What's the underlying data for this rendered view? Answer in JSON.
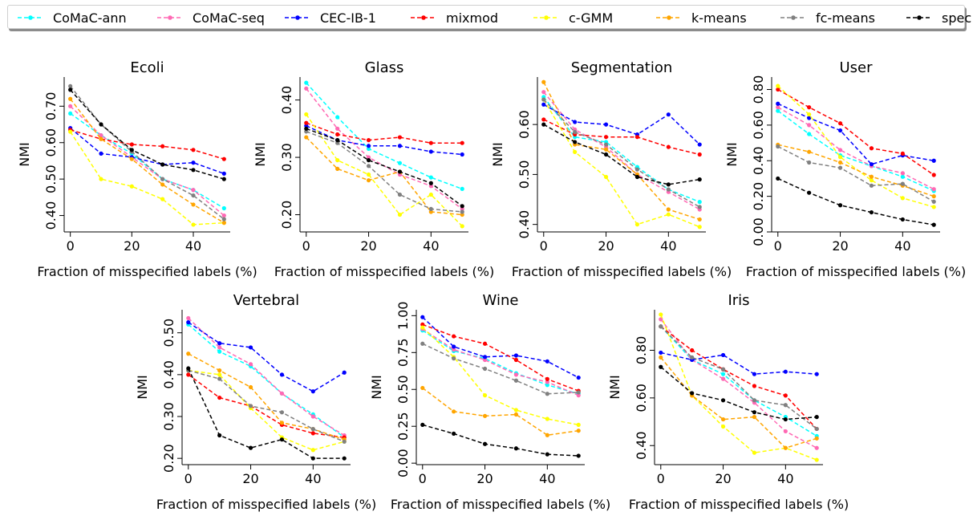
{
  "chart_data": [
    {
      "title": "Ecoli",
      "type": "line",
      "xlabel": "Fraction of misspecified labels (%)",
      "ylabel": "NMI",
      "x": [
        0,
        10,
        20,
        30,
        40,
        50
      ],
      "xlim": [
        -2,
        52
      ],
      "ylim": [
        0.355,
        0.78
      ],
      "xticks": [
        0,
        20,
        40
      ],
      "xtick_labels": [
        "0",
        "20",
        "40"
      ],
      "yticks": [
        0.4,
        0.5,
        0.6,
        0.7
      ],
      "ytick_labels": [
        "0.40",
        "0.50",
        "0.60",
        "0.70"
      ],
      "series": [
        {
          "name": "CoMaC-ann",
          "values": [
            0.68,
            0.62,
            0.57,
            0.5,
            0.47,
            0.42
          ]
        },
        {
          "name": "CoMaC-seq",
          "values": [
            0.7,
            0.62,
            0.56,
            0.5,
            0.47,
            0.4
          ]
        },
        {
          "name": "CEC-IB-1",
          "values": [
            0.64,
            0.57,
            0.56,
            0.54,
            0.545,
            0.515
          ]
        },
        {
          "name": "mixmod",
          "values": [
            0.635,
            0.61,
            0.595,
            0.59,
            0.58,
            0.555
          ]
        },
        {
          "name": "c-GMM",
          "values": [
            0.63,
            0.5,
            0.48,
            0.445,
            0.375,
            0.38
          ]
        },
        {
          "name": "k-means",
          "values": [
            0.72,
            0.61,
            0.555,
            0.485,
            0.43,
            0.38
          ]
        },
        {
          "name": "fc-means",
          "values": [
            0.755,
            0.65,
            0.575,
            0.5,
            0.455,
            0.39
          ]
        },
        {
          "name": "spec",
          "values": [
            0.745,
            0.65,
            0.58,
            0.54,
            0.525,
            0.5
          ]
        }
      ]
    },
    {
      "title": "Glass",
      "type": "line",
      "xlabel": "Fraction of misspecified labels (%)",
      "ylabel": "NMI",
      "x": [
        0,
        10,
        20,
        30,
        40,
        50
      ],
      "xlim": [
        -2,
        52
      ],
      "ylim": [
        0.17,
        0.44
      ],
      "xticks": [
        0,
        20,
        40
      ],
      "xtick_labels": [
        "0",
        "20",
        "40"
      ],
      "yticks": [
        0.2,
        0.3,
        0.4
      ],
      "ytick_labels": [
        "0.20",
        "0.30",
        "0.40"
      ],
      "series": [
        {
          "name": "CoMaC-ann",
          "values": [
            0.43,
            0.37,
            0.315,
            0.29,
            0.265,
            0.245
          ]
        },
        {
          "name": "CoMaC-seq",
          "values": [
            0.42,
            0.35,
            0.3,
            0.27,
            0.25,
            0.21
          ]
        },
        {
          "name": "CEC-IB-1",
          "values": [
            0.355,
            0.33,
            0.32,
            0.32,
            0.31,
            0.305
          ]
        },
        {
          "name": "mixmod",
          "values": [
            0.36,
            0.34,
            0.33,
            0.335,
            0.325,
            0.325
          ]
        },
        {
          "name": "c-GMM",
          "values": [
            0.375,
            0.295,
            0.27,
            0.2,
            0.235,
            0.18
          ]
        },
        {
          "name": "k-means",
          "values": [
            0.335,
            0.28,
            0.26,
            0.275,
            0.205,
            0.2
          ]
        },
        {
          "name": "fc-means",
          "values": [
            0.345,
            0.325,
            0.285,
            0.235,
            0.21,
            0.205
          ]
        },
        {
          "name": "spec",
          "values": [
            0.35,
            0.33,
            0.295,
            0.275,
            0.255,
            0.215
          ]
        }
      ]
    },
    {
      "title": "Segmentation",
      "type": "line",
      "xlabel": "Fraction of misspecified labels (%)",
      "ylabel": "NMI",
      "x": [
        0,
        10,
        20,
        30,
        40,
        50
      ],
      "xlim": [
        -2,
        52
      ],
      "ylim": [
        0.385,
        0.695
      ],
      "xticks": [
        0,
        20,
        40
      ],
      "xtick_labels": [
        "0",
        "20",
        "40"
      ],
      "yticks": [
        0.4,
        0.5,
        0.6
      ],
      "ytick_labels": [
        "0.40",
        "0.50",
        "0.60"
      ],
      "series": [
        {
          "name": "CoMaC-ann",
          "values": [
            0.655,
            0.575,
            0.565,
            0.515,
            0.47,
            0.445
          ]
        },
        {
          "name": "CoMaC-seq",
          "values": [
            0.665,
            0.59,
            0.555,
            0.5,
            0.465,
            0.43
          ]
        },
        {
          "name": "CEC-IB-1",
          "values": [
            0.64,
            0.605,
            0.6,
            0.58,
            0.62,
            0.56
          ]
        },
        {
          "name": "mixmod",
          "values": [
            0.61,
            0.58,
            0.575,
            0.575,
            0.555,
            0.54
          ]
        },
        {
          "name": "c-GMM",
          "values": [
            0.65,
            0.545,
            0.495,
            0.4,
            0.42,
            0.395
          ]
        },
        {
          "name": "k-means",
          "values": [
            0.685,
            0.56,
            0.55,
            0.5,
            0.43,
            0.41
          ]
        },
        {
          "name": "fc-means",
          "values": [
            0.65,
            0.585,
            0.56,
            0.51,
            0.47,
            0.435
          ]
        },
        {
          "name": "spec",
          "values": [
            0.6,
            0.565,
            0.54,
            0.495,
            0.48,
            0.49
          ]
        }
      ]
    },
    {
      "title": "User",
      "type": "line",
      "xlabel": "Fraction of misspecified labels (%)",
      "ylabel": "NMI",
      "x": [
        0,
        10,
        20,
        30,
        40,
        50
      ],
      "xlim": [
        -2,
        52
      ],
      "ylim": [
        0.0,
        0.87
      ],
      "xticks": [
        0,
        20,
        40
      ],
      "xtick_labels": [
        "0",
        "20",
        "40"
      ],
      "yticks": [
        0.0,
        0.2,
        0.4,
        0.6,
        0.8
      ],
      "ytick_labels": [
        "0.00",
        "0.20",
        "0.40",
        "0.60",
        "0.80"
      ],
      "series": [
        {
          "name": "CoMaC-ann",
          "values": [
            0.68,
            0.55,
            0.43,
            0.37,
            0.31,
            0.23
          ]
        },
        {
          "name": "CoMaC-seq",
          "values": [
            0.7,
            0.6,
            0.46,
            0.37,
            0.33,
            0.24
          ]
        },
        {
          "name": "CEC-IB-1",
          "values": [
            0.72,
            0.64,
            0.57,
            0.38,
            0.43,
            0.4
          ]
        },
        {
          "name": "mixmod",
          "values": [
            0.8,
            0.7,
            0.61,
            0.47,
            0.44,
            0.32
          ]
        },
        {
          "name": "c-GMM",
          "values": [
            0.82,
            0.66,
            0.42,
            0.29,
            0.19,
            0.14
          ]
        },
        {
          "name": "k-means",
          "values": [
            0.49,
            0.45,
            0.39,
            0.31,
            0.26,
            0.2
          ]
        },
        {
          "name": "fc-means",
          "values": [
            0.48,
            0.39,
            0.36,
            0.26,
            0.27,
            0.17
          ]
        },
        {
          "name": "spec",
          "values": [
            0.3,
            0.22,
            0.15,
            0.11,
            0.07,
            0.04
          ]
        }
      ]
    },
    {
      "title": "Vertebral",
      "type": "line",
      "xlabel": "Fraction of misspecified labels (%)",
      "ylabel": "NMI",
      "x": [
        0,
        10,
        20,
        30,
        40,
        50
      ],
      "xlim": [
        -2,
        52
      ],
      "ylim": [
        0.185,
        0.555
      ],
      "xticks": [
        0,
        20,
        40
      ],
      "xtick_labels": [
        "0",
        "20",
        "40"
      ],
      "yticks": [
        0.2,
        0.3,
        0.4,
        0.5
      ],
      "ytick_labels": [
        "0.20",
        "0.30",
        "0.40",
        "0.50"
      ],
      "series": [
        {
          "name": "CoMaC-ann",
          "values": [
            0.52,
            0.455,
            0.42,
            0.355,
            0.305,
            0.25
          ]
        },
        {
          "name": "CoMaC-seq",
          "values": [
            0.535,
            0.465,
            0.425,
            0.355,
            0.3,
            0.255
          ]
        },
        {
          "name": "CEC-IB-1",
          "values": [
            0.525,
            0.475,
            0.465,
            0.4,
            0.36,
            0.405
          ]
        },
        {
          "name": "mixmod",
          "values": [
            0.4,
            0.345,
            0.325,
            0.28,
            0.26,
            0.25
          ]
        },
        {
          "name": "c-GMM",
          "values": [
            0.41,
            0.4,
            0.32,
            0.25,
            0.22,
            0.24
          ]
        },
        {
          "name": "k-means",
          "values": [
            0.45,
            0.41,
            0.37,
            0.285,
            0.27,
            0.245
          ]
        },
        {
          "name": "fc-means",
          "values": [
            0.41,
            0.39,
            0.325,
            0.31,
            0.27,
            0.24
          ]
        },
        {
          "name": "spec",
          "values": [
            0.415,
            0.255,
            0.225,
            0.245,
            0.2,
            0.2
          ]
        }
      ]
    },
    {
      "title": "Wine",
      "type": "line",
      "xlabel": "Fraction of misspecified labels (%)",
      "ylabel": "NMI",
      "x": [
        0,
        10,
        20,
        30,
        40,
        50
      ],
      "xlim": [
        -2,
        52
      ],
      "ylim": [
        -0.01,
        1.04
      ],
      "xticks": [
        0,
        20,
        40
      ],
      "xtick_labels": [
        "0",
        "20",
        "40"
      ],
      "yticks": [
        0.0,
        0.25,
        0.5,
        0.75,
        1.0
      ],
      "ytick_labels": [
        "0.00",
        "0.25",
        "0.50",
        "0.75",
        "1.00"
      ],
      "series": [
        {
          "name": "CoMaC-ann",
          "values": [
            0.9,
            0.76,
            0.71,
            0.61,
            0.53,
            0.47
          ]
        },
        {
          "name": "CoMaC-seq",
          "values": [
            0.91,
            0.77,
            0.7,
            0.6,
            0.55,
            0.46
          ]
        },
        {
          "name": "CEC-IB-1",
          "values": [
            0.99,
            0.79,
            0.72,
            0.73,
            0.69,
            0.58
          ]
        },
        {
          "name": "mixmod",
          "values": [
            0.94,
            0.86,
            0.81,
            0.7,
            0.57,
            0.49
          ]
        },
        {
          "name": "c-GMM",
          "values": [
            0.92,
            0.72,
            0.46,
            0.36,
            0.3,
            0.26
          ]
        },
        {
          "name": "k-means",
          "values": [
            0.51,
            0.35,
            0.32,
            0.33,
            0.19,
            0.22
          ]
        },
        {
          "name": "fc-means",
          "values": [
            0.81,
            0.71,
            0.64,
            0.56,
            0.47,
            0.48
          ]
        },
        {
          "name": "spec",
          "values": [
            0.26,
            0.2,
            0.13,
            0.1,
            0.06,
            0.05
          ]
        }
      ]
    },
    {
      "title": "Iris",
      "type": "line",
      "xlabel": "Fraction of misspecified labels (%)",
      "ylabel": "NMI",
      "x": [
        0,
        10,
        20,
        30,
        40,
        50
      ],
      "xlim": [
        -2,
        52
      ],
      "ylim": [
        0.32,
        0.97
      ],
      "xticks": [
        0,
        20,
        40
      ],
      "xtick_labels": [
        "0",
        "20",
        "40"
      ],
      "yticks": [
        0.4,
        0.6,
        0.8
      ],
      "ytick_labels": [
        "0.40",
        "0.60",
        "0.80"
      ],
      "series": [
        {
          "name": "CoMaC-ann",
          "values": [
            0.9,
            0.76,
            0.7,
            0.59,
            0.52,
            0.44
          ]
        },
        {
          "name": "CoMaC-seq",
          "values": [
            0.93,
            0.76,
            0.68,
            0.58,
            0.46,
            0.39
          ]
        },
        {
          "name": "CEC-IB-1",
          "values": [
            0.79,
            0.76,
            0.78,
            0.7,
            0.71,
            0.7
          ]
        },
        {
          "name": "mixmod",
          "values": [
            0.9,
            0.8,
            0.72,
            0.65,
            0.61,
            0.47
          ]
        },
        {
          "name": "c-GMM",
          "values": [
            0.95,
            0.61,
            0.48,
            0.37,
            0.39,
            0.34
          ]
        },
        {
          "name": "k-means",
          "values": [
            0.77,
            0.61,
            0.51,
            0.52,
            0.39,
            0.43
          ]
        },
        {
          "name": "fc-means",
          "values": [
            0.9,
            0.77,
            0.72,
            0.59,
            0.57,
            0.47
          ]
        },
        {
          "name": "spec",
          "values": [
            0.73,
            0.62,
            0.59,
            0.54,
            0.51,
            0.52
          ]
        }
      ]
    }
  ],
  "legend": [
    {
      "name": "CoMaC-ann",
      "color": "#00ffff"
    },
    {
      "name": "CoMaC-seq",
      "color": "#ff69b4"
    },
    {
      "name": "CEC-IB-1",
      "color": "#0000ff"
    },
    {
      "name": "mixmod",
      "color": "#ff0000"
    },
    {
      "name": "c-GMM",
      "color": "#ffff00"
    },
    {
      "name": "k-means",
      "color": "#ffa500"
    },
    {
      "name": "fc-means",
      "color": "#808080"
    },
    {
      "name": "spec",
      "color": "#000000"
    }
  ]
}
